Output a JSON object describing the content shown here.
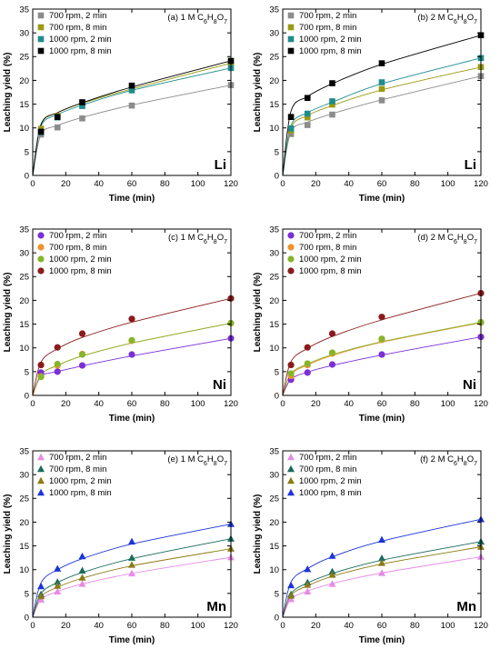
{
  "chart_data": [
    {
      "type": "scatter",
      "panel": "(a) 1 M C6H8O7",
      "title_prefix": "(a) 1 M C",
      "title_sub": [
        "6",
        "8",
        "7"
      ],
      "element": "Li",
      "xlabel": "Time (min)",
      "ylabel": "Leaching yield (%)",
      "xlim": [
        0,
        120
      ],
      "ylim": [
        0,
        35
      ],
      "xticks": [
        0,
        20,
        40,
        60,
        80,
        100,
        120
      ],
      "yticks": [
        0,
        5,
        10,
        15,
        20,
        25,
        30,
        35
      ],
      "x": [
        5,
        15,
        30,
        60,
        120
      ],
      "series": [
        {
          "name": "700 rpm, 2 min",
          "marker": "square",
          "color": "#8c8c8c",
          "values": [
            8.6,
            10.1,
            12.0,
            14.7,
            19.0
          ],
          "fit": [
            8.6,
            10.5,
            12.2,
            14.8,
            19.0
          ]
        },
        {
          "name": "700 rpm, 8 min",
          "marker": "square",
          "color": "#9a9a14",
          "values": [
            9.8,
            12.5,
            15.2,
            18.3,
            23.6
          ],
          "fit": [
            10.8,
            13.2,
            15.2,
            18.2,
            23.6
          ]
        },
        {
          "name": "1000 rpm, 2 min",
          "marker": "square",
          "color": "#1f8c8c",
          "values": [
            9.1,
            12.2,
            14.6,
            17.9,
            22.6
          ],
          "fit": [
            10.3,
            12.8,
            14.8,
            17.9,
            22.6
          ]
        },
        {
          "name": "1000 rpm, 8 min",
          "marker": "square",
          "color": "#000000",
          "values": [
            9.2,
            12.3,
            15.4,
            18.9,
            24.1
          ],
          "fit": [
            10.7,
            13.2,
            15.3,
            18.6,
            24.1
          ]
        }
      ]
    },
    {
      "type": "scatter",
      "panel": "(b) 2 M C6H8O7",
      "title_prefix": "(b) 2 M C",
      "title_sub": [
        "6",
        "8",
        "7"
      ],
      "element": "Li",
      "xlabel": "Time (min)",
      "ylabel": "Leaching yield (%)",
      "xlim": [
        0,
        120
      ],
      "ylim": [
        0,
        35
      ],
      "xticks": [
        0,
        20,
        40,
        60,
        80,
        100,
        120
      ],
      "yticks": [
        0,
        5,
        10,
        15,
        20,
        25,
        30,
        35
      ],
      "x": [
        5,
        15,
        30,
        60,
        120
      ],
      "series": [
        {
          "name": "700 rpm, 2 min",
          "marker": "square",
          "color": "#8c8c8c",
          "values": [
            8.7,
            10.6,
            12.8,
            15.8,
            20.9
          ],
          "fit": [
            9.2,
            11.2,
            13.0,
            15.9,
            20.9
          ]
        },
        {
          "name": "700 rpm, 8 min",
          "marker": "square",
          "color": "#9a9a14",
          "values": [
            9.4,
            12.2,
            14.9,
            18.2,
            22.8
          ],
          "fit": [
            10.0,
            12.6,
            14.7,
            18.0,
            22.8
          ]
        },
        {
          "name": "1000 rpm, 2 min",
          "marker": "square",
          "color": "#1f8c8c",
          "values": [
            9.9,
            13.0,
            15.6,
            19.6,
            24.7
          ],
          "fit": [
            10.5,
            13.2,
            15.4,
            19.3,
            24.7
          ]
        },
        {
          "name": "1000 rpm, 8 min",
          "marker": "square",
          "color": "#000000",
          "values": [
            12.3,
            16.3,
            19.4,
            23.6,
            29.5
          ],
          "fit": [
            13.5,
            16.6,
            19.3,
            23.4,
            29.5
          ]
        }
      ]
    },
    {
      "type": "scatter",
      "panel": "(c) 1 M C6H8O7",
      "title_prefix": "(c) 1 M C",
      "title_sub": [
        "6",
        "8",
        "7"
      ],
      "element": "Ni",
      "xlabel": "Time (min)",
      "ylabel": "Leaching yield (%)",
      "xlim": [
        0,
        120
      ],
      "ylim": [
        0,
        35
      ],
      "xticks": [
        0,
        20,
        40,
        60,
        80,
        100,
        120
      ],
      "yticks": [
        0,
        5,
        10,
        15,
        20,
        25,
        30,
        35
      ],
      "x": [
        5,
        15,
        30,
        60,
        120
      ],
      "series": [
        {
          "name": "700 rpm, 2 min",
          "marker": "circle",
          "color": "#7b2fd6",
          "values": [
            4.8,
            5.0,
            6.3,
            8.6,
            12.0
          ],
          "fit": [
            4.0,
            5.0,
            6.2,
            8.3,
            12.0
          ]
        },
        {
          "name": "700 rpm, 8 min",
          "marker": "circle",
          "color": "#f0922c",
          "values": [
            4.0,
            6.3,
            8.7,
            11.5,
            15.2
          ],
          "fit": [
            4.4,
            6.3,
            8.3,
            11.0,
            15.2
          ]
        },
        {
          "name": "1000 rpm, 2 min",
          "marker": "circle",
          "color": "#86b42a",
          "values": [
            3.9,
            6.6,
            8.6,
            11.6,
            15.2
          ],
          "fit": [
            4.4,
            6.3,
            8.3,
            11.0,
            15.2
          ]
        },
        {
          "name": "1000 rpm, 8 min",
          "marker": "circle",
          "color": "#8b1a1a",
          "values": [
            6.4,
            10.1,
            13.0,
            16.1,
            20.4
          ],
          "fit": [
            7.0,
            9.8,
            12.2,
            15.4,
            20.4
          ]
        }
      ]
    },
    {
      "type": "scatter",
      "panel": "(d) 2 M C6H8O7",
      "title_prefix": "(d) 2 M C",
      "title_sub": [
        "6",
        "8",
        "7"
      ],
      "element": "Ni",
      "xlabel": "Time (min)",
      "ylabel": "Leaching yield (%)",
      "xlim": [
        0,
        120
      ],
      "ylim": [
        0,
        35
      ],
      "xticks": [
        0,
        20,
        40,
        60,
        80,
        100,
        120
      ],
      "yticks": [
        0,
        5,
        10,
        15,
        20,
        25,
        30,
        35
      ],
      "x": [
        5,
        15,
        30,
        60,
        120
      ],
      "series": [
        {
          "name": "700 rpm, 2 min",
          "marker": "circle",
          "color": "#7b2fd6",
          "values": [
            3.3,
            4.8,
            6.5,
            8.6,
            12.3
          ],
          "fit": [
            3.4,
            4.9,
            6.3,
            8.5,
            12.3
          ]
        },
        {
          "name": "700 rpm, 8 min",
          "marker": "circle",
          "color": "#f0922c",
          "values": [
            4.1,
            6.4,
            8.8,
            11.7,
            15.3
          ],
          "fit": [
            4.4,
            6.4,
            8.4,
            11.2,
            15.3
          ]
        },
        {
          "name": "1000 rpm, 2 min",
          "marker": "circle",
          "color": "#86b42a",
          "values": [
            4.6,
            6.7,
            9.0,
            11.9,
            15.4
          ],
          "fit": [
            4.6,
            6.6,
            8.6,
            11.3,
            15.4
          ]
        },
        {
          "name": "1000 rpm, 8 min",
          "marker": "circle",
          "color": "#8b1a1a",
          "values": [
            6.4,
            10.1,
            13.0,
            16.5,
            21.5
          ],
          "fit": [
            7.1,
            9.9,
            12.4,
            15.9,
            21.5
          ]
        }
      ]
    },
    {
      "type": "scatter",
      "panel": "(e) 1 M C6H8O7",
      "title_prefix": "(e) 1 M C",
      "title_sub": [
        "6",
        "8",
        "7"
      ],
      "element": "Mn",
      "xlabel": "Time (min)",
      "ylabel": "Leaching yield (%)",
      "xlim": [
        0,
        120
      ],
      "ylim": [
        0,
        35
      ],
      "xticks": [
        0,
        20,
        40,
        60,
        80,
        100,
        120
      ],
      "yticks": [
        0,
        5,
        10,
        15,
        20,
        25,
        30,
        35
      ],
      "x": [
        5,
        15,
        30,
        60,
        120
      ],
      "series": [
        {
          "name": "700 rpm, 2 min",
          "marker": "triangle",
          "color": "#e68be6",
          "values": [
            3.7,
            5.4,
            7.0,
            9.2,
            12.6
          ],
          "fit": [
            3.7,
            5.4,
            7.0,
            9.2,
            12.6
          ]
        },
        {
          "name": "700 rpm, 8 min",
          "marker": "triangle",
          "color": "#1a6b5c",
          "values": [
            4.8,
            7.4,
            9.8,
            12.5,
            16.5
          ],
          "fit": [
            5.0,
            7.3,
            9.4,
            12.3,
            16.5
          ]
        },
        {
          "name": "1000 rpm, 2 min",
          "marker": "triangle",
          "color": "#8c7a14",
          "values": [
            4.4,
            6.6,
            8.3,
            11.0,
            14.4
          ],
          "fit": [
            4.3,
            6.3,
            8.2,
            10.8,
            14.4
          ]
        },
        {
          "name": "1000 rpm, 8 min",
          "marker": "triangle",
          "color": "#1c34d9",
          "values": [
            6.5,
            10.2,
            12.8,
            15.9,
            19.6
          ],
          "fit": [
            7.2,
            10.0,
            12.3,
            15.4,
            19.6
          ]
        }
      ]
    },
    {
      "type": "scatter",
      "panel": "(f) 2 M C6H8O7",
      "title_prefix": "(f) 2 M C",
      "title_sub": [
        "6",
        "8",
        "7"
      ],
      "element": "Mn",
      "xlabel": "Time (min)",
      "ylabel": "Leaching yield (%)",
      "xlim": [
        0,
        120
      ],
      "ylim": [
        0,
        35
      ],
      "xticks": [
        0,
        20,
        40,
        60,
        80,
        100,
        120
      ],
      "yticks": [
        0,
        5,
        10,
        15,
        20,
        25,
        30,
        35
      ],
      "x": [
        5,
        15,
        30,
        60,
        120
      ],
      "series": [
        {
          "name": "700 rpm, 2 min",
          "marker": "triangle",
          "color": "#e68be6",
          "values": [
            3.8,
            5.4,
            7.0,
            9.3,
            12.7
          ],
          "fit": [
            3.8,
            5.5,
            7.1,
            9.3,
            12.7
          ]
        },
        {
          "name": "700 rpm, 8 min",
          "marker": "triangle",
          "color": "#1a6b5c",
          "values": [
            4.8,
            7.3,
            9.6,
            12.4,
            15.9
          ],
          "fit": [
            5.0,
            7.2,
            9.2,
            12.0,
            15.9
          ]
        },
        {
          "name": "1000 rpm, 2 min",
          "marker": "triangle",
          "color": "#8c7a14",
          "values": [
            4.5,
            6.8,
            8.9,
            11.4,
            14.8
          ],
          "fit": [
            4.6,
            6.6,
            8.6,
            11.2,
            14.8
          ]
        },
        {
          "name": "1000 rpm, 8 min",
          "marker": "triangle",
          "color": "#1c34d9",
          "values": [
            6.7,
            10.1,
            12.9,
            16.3,
            20.6
          ],
          "fit": [
            7.4,
            10.2,
            12.7,
            16.0,
            20.6
          ]
        }
      ]
    }
  ]
}
